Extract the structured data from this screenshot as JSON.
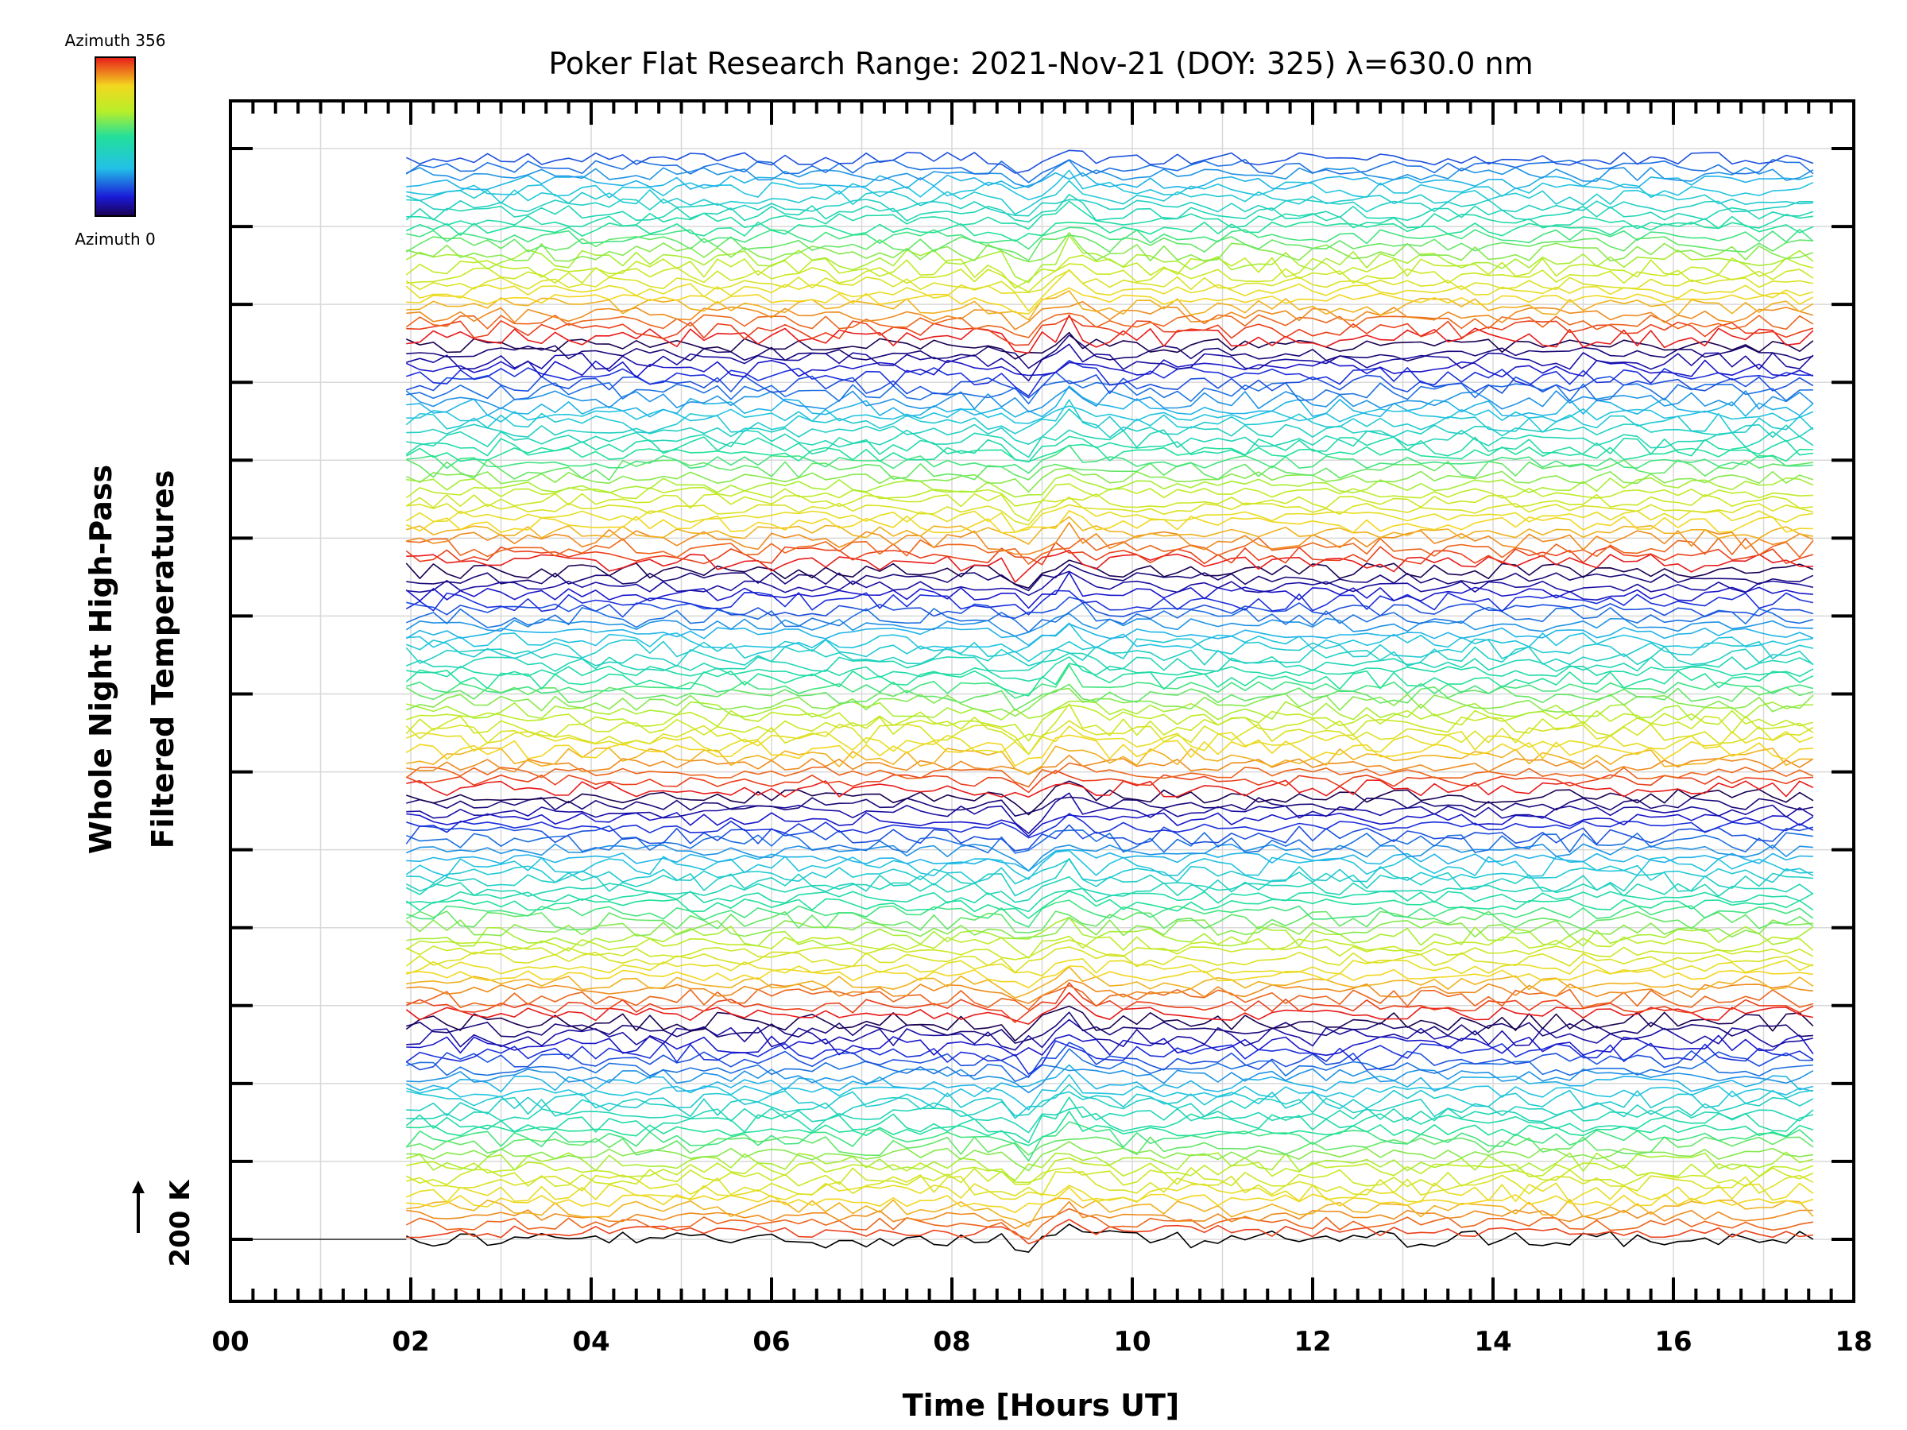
{
  "chart_data": {
    "type": "line",
    "title": "Poker Flat Research Range: 2021-Nov-21 (DOY: 325) λ=630.0 nm",
    "xlabel": "Time [Hours UT]",
    "ylabel_line1": "Whole Night High-Pass",
    "ylabel_line2": "Filtered Temperatures",
    "scale_label": "200 K",
    "xlim": [
      0,
      18
    ],
    "x_ticks": [
      "00",
      "02",
      "04",
      "06",
      "08",
      "10",
      "12",
      "14",
      "16",
      "18"
    ],
    "y_gridlines": 15,
    "grid": true,
    "colorbar": {
      "top_label": "Azimuth 356",
      "bottom_label": "Azimuth 0",
      "colormap": "rainbow"
    },
    "data_window_hours": [
      1.95,
      17.55
    ],
    "series_count": 140,
    "series_per_cycle": 29,
    "event_times_hours": [
      8.8,
      9.3
    ]
  }
}
